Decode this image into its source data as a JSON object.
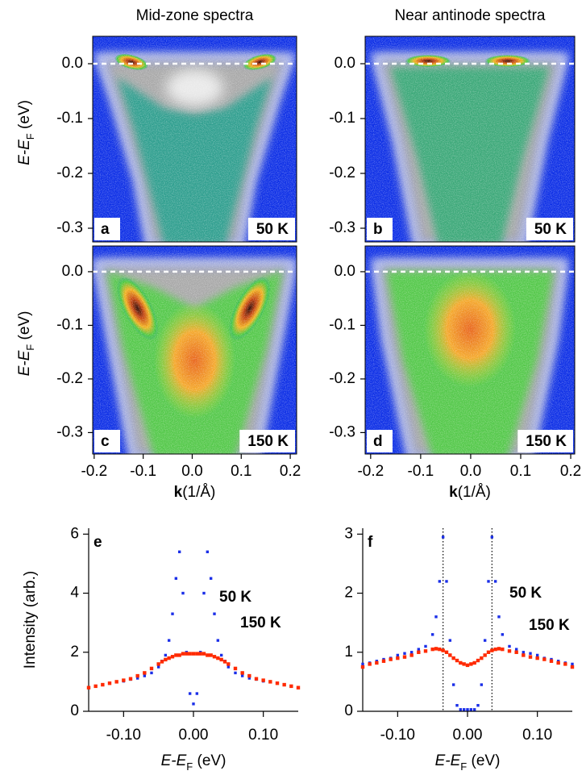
{
  "chart_data": [
    {
      "type": "heatmap",
      "title": "Mid-zone spectra",
      "panel": "a",
      "temperature_label": "50 K",
      "ylabel": [
        "E-E",
        "F",
        " (eV)"
      ],
      "ylim": [
        -0.325,
        0.05
      ],
      "yticks": [
        {
          "value": 0,
          "label": "0.0"
        },
        -0.1,
        -0.2,
        -0.3
      ],
      "hline": 0
    },
    {
      "type": "heatmap",
      "title": "Near antinode spectra",
      "panel": "b",
      "temperature_label": "50 K",
      "ylim": [
        -0.325,
        0.05
      ],
      "yticks": [
        {
          "value": 0,
          "label": "0.0"
        },
        -0.1,
        -0.2,
        -0.3
      ],
      "hline": 0
    },
    {
      "type": "heatmap",
      "panel": "c",
      "temperature_label": "150 K",
      "ylabel": [
        "E-E",
        "F",
        " (eV)"
      ],
      "xlabel": [
        "k",
        "(1/Å)"
      ],
      "xlim": [
        -0.203,
        0.213
      ],
      "ylim": [
        -0.34,
        0.048
      ],
      "xticks": [
        -0.2,
        -0.1,
        {
          "value": 0,
          "label": "0.0"
        },
        0.1,
        0.2
      ],
      "yticks": [
        {
          "value": 0,
          "label": "0.0"
        },
        -0.1,
        -0.2,
        -0.3
      ],
      "hline": 0
    },
    {
      "type": "heatmap",
      "panel": "d",
      "temperature_label": "150 K",
      "xlabel": [
        "k",
        "(1/Å)"
      ],
      "xlim": [
        -0.211,
        0.208
      ],
      "ylim": [
        -0.34,
        0.048
      ],
      "xticks": [
        -0.2,
        -0.1,
        {
          "value": 0,
          "label": "0.0"
        },
        0.1,
        0.2
      ],
      "yticks": [
        {
          "value": 0,
          "label": "0.0"
        },
        -0.1,
        -0.2,
        -0.3
      ],
      "hline": 0
    },
    {
      "type": "scatter",
      "panel": "e",
      "ylabel": "Intensity (arb.)",
      "xlabel": [
        "E-E",
        "F",
        " (eV)"
      ],
      "xlim": [
        -0.15,
        0.15
      ],
      "ylim": [
        0,
        6.2
      ],
      "xticks": [
        {
          "value": -0.1,
          "label": "-0.10"
        },
        {
          "value": 0,
          "label": "0.00"
        },
        {
          "value": 0.1,
          "label": "0.10"
        }
      ],
      "yticks": [
        0,
        2,
        4,
        6
      ],
      "x": [
        -0.15,
        -0.14,
        -0.13,
        -0.12,
        -0.11,
        -0.1,
        -0.09,
        -0.08,
        -0.07,
        -0.06,
        -0.05,
        -0.045,
        -0.04,
        -0.035,
        -0.03,
        -0.025,
        -0.02,
        -0.015,
        -0.01,
        -0.005,
        0,
        0.005,
        0.01,
        0.015,
        0.02,
        0.025,
        0.03,
        0.035,
        0.04,
        0.045,
        0.05,
        0.06,
        0.07,
        0.08,
        0.09,
        0.1,
        0.11,
        0.12,
        0.13,
        0.14,
        0.15
      ],
      "series": [
        {
          "name": "50 K",
          "color": "#1a2ee8",
          "values": [
            0.8,
            0.85,
            0.9,
            0.95,
            1.0,
            1.02,
            1.08,
            1.12,
            1.2,
            1.3,
            1.5,
            1.7,
            1.9,
            2.4,
            3.3,
            4.5,
            5.4,
            4.0,
            2.0,
            0.6,
            0.25,
            0.6,
            2.0,
            4.0,
            5.4,
            4.5,
            3.3,
            2.4,
            1.9,
            1.7,
            1.5,
            1.3,
            1.2,
            1.12,
            1.08,
            1.02,
            1.0,
            0.95,
            0.9,
            0.85,
            0.8
          ]
        },
        {
          "name": "150 K",
          "color": "#ff2a00",
          "values": [
            0.8,
            0.85,
            0.9,
            0.95,
            1.0,
            1.05,
            1.1,
            1.2,
            1.3,
            1.45,
            1.6,
            1.68,
            1.75,
            1.8,
            1.85,
            1.9,
            1.9,
            1.95,
            1.95,
            1.95,
            1.95,
            1.95,
            1.95,
            1.95,
            1.9,
            1.9,
            1.85,
            1.8,
            1.75,
            1.68,
            1.6,
            1.45,
            1.3,
            1.2,
            1.1,
            1.05,
            1.0,
            0.95,
            0.9,
            0.85,
            0.8
          ]
        }
      ]
    },
    {
      "type": "scatter",
      "panel": "f",
      "xlabel": [
        "E-E",
        "F",
        " (eV)"
      ],
      "xlim": [
        -0.15,
        0.15
      ],
      "ylim": [
        0,
        3.1
      ],
      "xticks": [
        {
          "value": -0.1,
          "label": "-0.10"
        },
        {
          "value": 0,
          "label": "0.00"
        },
        {
          "value": 0.1,
          "label": "0.10"
        }
      ],
      "yticks": [
        0,
        1,
        2,
        3
      ],
      "vlines": [
        -0.035,
        0.035
      ],
      "x": [
        -0.15,
        -0.14,
        -0.13,
        -0.12,
        -0.11,
        -0.1,
        -0.09,
        -0.08,
        -0.07,
        -0.06,
        -0.05,
        -0.045,
        -0.04,
        -0.035,
        -0.03,
        -0.025,
        -0.02,
        -0.015,
        -0.01,
        -0.005,
        0,
        0.005,
        0.01,
        0.015,
        0.02,
        0.025,
        0.03,
        0.035,
        0.04,
        0.045,
        0.05,
        0.06,
        0.07,
        0.08,
        0.09,
        0.1,
        0.11,
        0.12,
        0.13,
        0.14,
        0.15
      ],
      "series": [
        {
          "name": "50 K",
          "color": "#1a2ee8",
          "values": [
            0.8,
            0.82,
            0.85,
            0.88,
            0.9,
            0.95,
            0.98,
            1.0,
            1.05,
            1.1,
            1.3,
            1.6,
            2.2,
            2.95,
            2.2,
            1.2,
            0.45,
            0.1,
            0.03,
            0.03,
            0.03,
            0.03,
            0.03,
            0.1,
            0.45,
            1.2,
            2.2,
            2.95,
            2.2,
            1.6,
            1.3,
            1.1,
            1.05,
            1.0,
            0.98,
            0.95,
            0.9,
            0.88,
            0.85,
            0.82,
            0.8
          ]
        },
        {
          "name": "150 K",
          "color": "#ff2a00",
          "values": [
            0.75,
            0.8,
            0.82,
            0.85,
            0.88,
            0.9,
            0.92,
            0.95,
            1.0,
            1.02,
            1.05,
            1.06,
            1.05,
            1.03,
            1.0,
            0.95,
            0.9,
            0.86,
            0.82,
            0.8,
            0.78,
            0.8,
            0.82,
            0.86,
            0.9,
            0.95,
            1.0,
            1.03,
            1.05,
            1.06,
            1.05,
            1.02,
            1.0,
            0.95,
            0.92,
            0.9,
            0.88,
            0.85,
            0.82,
            0.8,
            0.75
          ]
        }
      ]
    }
  ]
}
